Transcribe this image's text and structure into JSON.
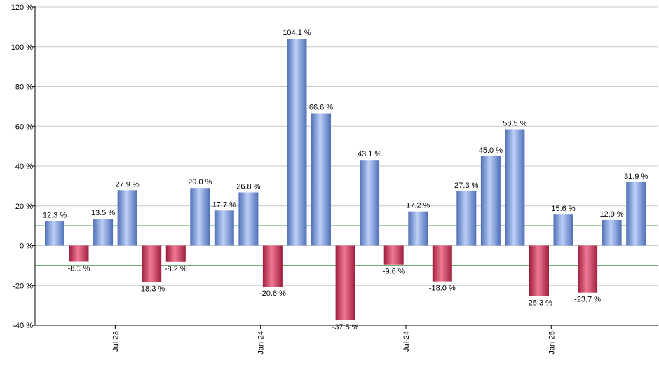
{
  "chart_data": {
    "type": "bar",
    "title": "",
    "xlabel": "",
    "ylabel": "",
    "ylim": [
      -40,
      120
    ],
    "y_ticks": [
      -40,
      -20,
      0,
      20,
      40,
      60,
      80,
      100,
      120
    ],
    "y_tick_suffix": " %",
    "value_suffix": " %",
    "grid": true,
    "threshold_lines": [
      10,
      -10
    ],
    "x_tick_labels": [
      {
        "label": "Jul-23",
        "after_bar": 3
      },
      {
        "label": "Jan-24",
        "after_bar": 9
      },
      {
        "label": "Jul-24",
        "after_bar": 15
      },
      {
        "label": "Jan-25",
        "after_bar": 21
      }
    ],
    "values": [
      12.3,
      -8.1,
      13.5,
      27.9,
      -18.3,
      -8.2,
      29.0,
      17.7,
      26.8,
      -20.6,
      104.1,
      66.6,
      -37.5,
      43.1,
      -9.6,
      17.2,
      -18.0,
      27.3,
      45.0,
      58.5,
      -25.3,
      15.6,
      -23.7,
      12.9,
      31.9
    ],
    "labels": [
      "12.3 %",
      "-8.1 %",
      "13.5 %",
      "27.9 %",
      "-18.3 %",
      "-8.2 %",
      "29.0 %",
      "17.7 %",
      "26.8 %",
      "-20.6 %",
      "104.1 %",
      "66.6 %",
      "-37.5 %",
      "43.1 %",
      "-9.6 %",
      "17.2 %",
      "-18.0 %",
      "27.3 %",
      "45.0 %",
      "58.5 %",
      "-25.3 %",
      "15.6 %",
      "-23.7 %",
      "12.9 %",
      "31.9 %"
    ],
    "colors": {
      "positive_light": "#bcd0f7",
      "positive_dark": "#4f6fb8",
      "negative_light": "#f07a93",
      "negative_dark": "#9e1e3c",
      "threshold": "#1a7a1a",
      "grid": "#c8c8c8",
      "axis": "#000000"
    }
  }
}
